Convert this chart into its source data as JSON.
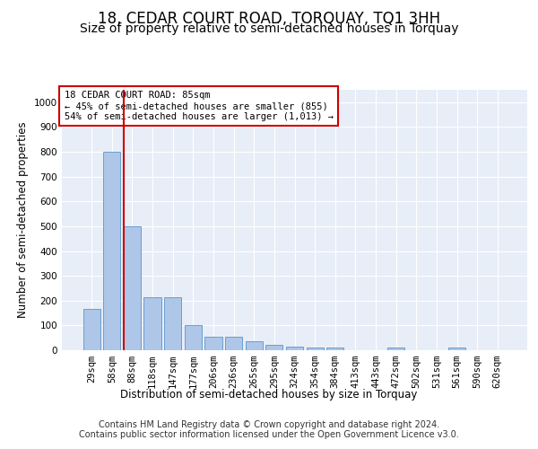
{
  "title": "18, CEDAR COURT ROAD, TORQUAY, TQ1 3HH",
  "subtitle": "Size of property relative to semi-detached houses in Torquay",
  "xlabel": "Distribution of semi-detached houses by size in Torquay",
  "ylabel": "Number of semi-detached properties",
  "categories": [
    "29sqm",
    "58sqm",
    "88sqm",
    "118sqm",
    "147sqm",
    "177sqm",
    "206sqm",
    "236sqm",
    "265sqm",
    "295sqm",
    "324sqm",
    "354sqm",
    "384sqm",
    "413sqm",
    "443sqm",
    "472sqm",
    "502sqm",
    "531sqm",
    "561sqm",
    "590sqm",
    "620sqm"
  ],
  "values": [
    165,
    800,
    500,
    215,
    215,
    100,
    55,
    55,
    35,
    20,
    15,
    10,
    10,
    0,
    0,
    10,
    0,
    0,
    10,
    0,
    0
  ],
  "bar_color": "#aec6e8",
  "bar_edge_color": "#5a96c8",
  "vline_color": "#cc0000",
  "vline_pos": 1.57,
  "annotation_text": "18 CEDAR COURT ROAD: 85sqm\n← 45% of semi-detached houses are smaller (855)\n54% of semi-detached houses are larger (1,013) →",
  "annotation_box_color": "#ffffff",
  "annotation_box_edge": "#cc0000",
  "ylim": [
    0,
    1050
  ],
  "yticks": [
    0,
    100,
    200,
    300,
    400,
    500,
    600,
    700,
    800,
    900,
    1000
  ],
  "footer": "Contains HM Land Registry data © Crown copyright and database right 2024.\nContains public sector information licensed under the Open Government Licence v3.0.",
  "bg_color": "#ffffff",
  "plot_bg_color": "#e8eef8",
  "grid_color": "#ffffff",
  "title_fontsize": 12,
  "subtitle_fontsize": 10,
  "axis_label_fontsize": 8.5,
  "tick_fontsize": 7.5,
  "footer_fontsize": 7
}
